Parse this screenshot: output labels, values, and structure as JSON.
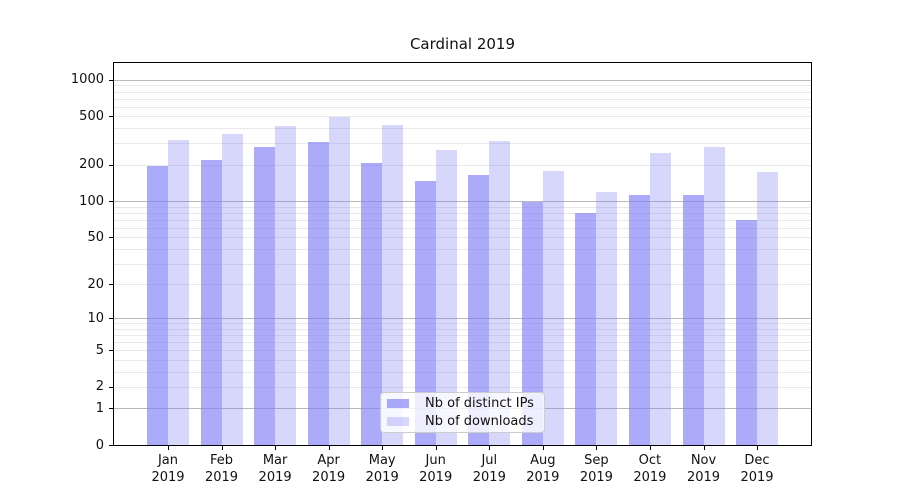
{
  "title": "Cardinal 2019",
  "colors": {
    "bar_base": "#7c7cf6",
    "bar_ips": "rgba(124,124,246,0.64)",
    "bar_downloads": "rgba(124,124,246,0.30)",
    "grid_major": "#b9b9b9",
    "grid_minor": "#e9e9e9",
    "axis": "#000000"
  },
  "legend": {
    "items": [
      {
        "label": "Nb of distinct IPs",
        "color": "rgba(124,124,246,0.64)"
      },
      {
        "label": "Nb of downloads",
        "color": "rgba(124,124,246,0.30)"
      }
    ]
  },
  "chart_data": {
    "type": "bar",
    "title": "Cardinal 2019",
    "categories": [
      "Jan 2019",
      "Feb 2019",
      "Mar 2019",
      "Apr 2019",
      "May 2019",
      "Jun 2019",
      "Jul 2019",
      "Aug 2019",
      "Sep 2019",
      "Oct 2019",
      "Nov 2019",
      "Dec 2019"
    ],
    "series": [
      {
        "name": "Nb of distinct IPs",
        "values": [
          195,
          217,
          280,
          310,
          207,
          148,
          165,
          98,
          79,
          112,
          112,
          70
        ]
      },
      {
        "name": "Nb of downloads",
        "values": [
          320,
          360,
          415,
          495,
          427,
          265,
          315,
          176,
          119,
          251,
          280,
          174
        ]
      }
    ],
    "xlabel": "",
    "ylabel": "",
    "yscale": "log1p",
    "yticks": [
      0,
      1,
      2,
      5,
      10,
      20,
      50,
      100,
      200,
      500,
      1000
    ],
    "ytick_labels": [
      "0",
      "1",
      "2",
      "5",
      "10",
      "20",
      "50",
      "100",
      "200",
      "500",
      "1000"
    ],
    "ylim": [
      0,
      1400
    ],
    "grid": "horizontal",
    "legend_position": "lower center"
  }
}
